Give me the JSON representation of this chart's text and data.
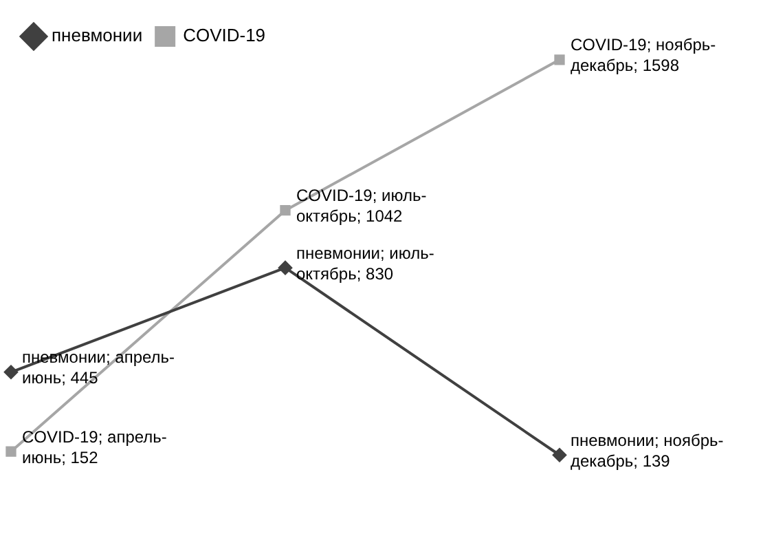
{
  "chart_data": {
    "type": "line",
    "categories": [
      null,
      null,
      null
    ],
    "tick_labels": false,
    "legend": "top",
    "line_style": "solid",
    "series": [
      {
        "name": "пневмонии",
        "color": "#404040",
        "marker": "diamond",
        "values": [
          445,
          830,
          139
        ],
        "value_labels": [
          "пневмонии; апрель-июнь; 445",
          "пневмонии; июль-октябрь; 830",
          "пневмонии; ноябрь-декабрь; 139"
        ]
      },
      {
        "name": "COVID-19",
        "color": "#a6a6a6",
        "marker": "square",
        "values": [
          152,
          1042,
          1598
        ],
        "value_labels": [
          "COVID-19; апрель-июнь; 152",
          "COVID-19; июль-октябрь; 1042",
          "COVID-19; ноябрь-декабрь; 1598"
        ]
      }
    ]
  }
}
